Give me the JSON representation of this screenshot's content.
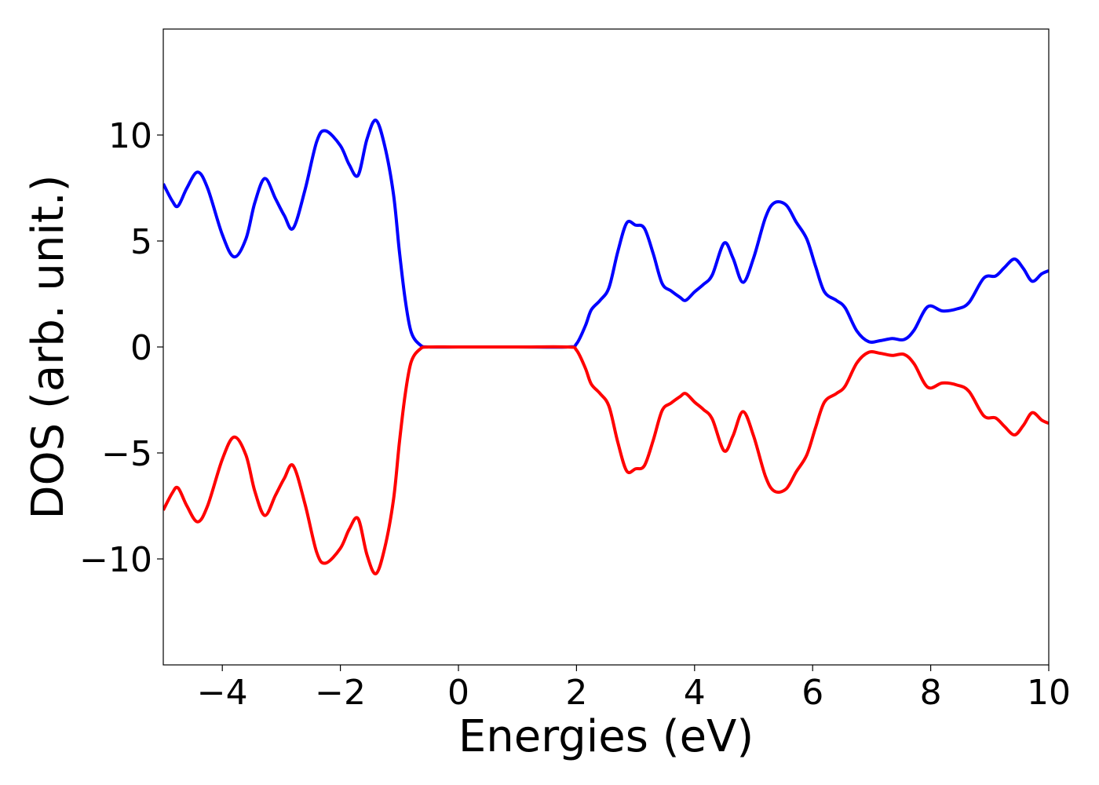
{
  "chart_data": {
    "type": "line",
    "title": "",
    "xlabel": "Energies (eV)",
    "ylabel": "DOS (arb. unit.)",
    "xlim": [
      -5,
      10
    ],
    "ylim": [
      -15,
      15
    ],
    "grid": false,
    "x_ticks": [
      -4,
      -2,
      0,
      2,
      4,
      6,
      8,
      10
    ],
    "x_tick_labels": [
      "−4",
      "−2",
      "0",
      "2",
      "4",
      "6",
      "8",
      "10"
    ],
    "y_ticks": [
      -10,
      -5,
      0,
      5,
      10
    ],
    "y_tick_labels": [
      "−10",
      "−5",
      "0",
      "5",
      "10"
    ],
    "series": [
      {
        "color": "#0000ff",
        "points": [
          [
            -5.0,
            7.7
          ],
          [
            -4.85,
            6.9
          ],
          [
            -4.75,
            6.65
          ],
          [
            -4.6,
            7.5
          ],
          [
            -4.42,
            8.25
          ],
          [
            -4.25,
            7.5
          ],
          [
            -4.0,
            5.3
          ],
          [
            -3.8,
            4.25
          ],
          [
            -3.6,
            5.1
          ],
          [
            -3.45,
            6.8
          ],
          [
            -3.28,
            7.95
          ],
          [
            -3.1,
            7.0
          ],
          [
            -2.95,
            6.2
          ],
          [
            -2.8,
            5.6
          ],
          [
            -2.6,
            7.4
          ],
          [
            -2.4,
            9.7
          ],
          [
            -2.25,
            10.2
          ],
          [
            -2.0,
            9.5
          ],
          [
            -1.85,
            8.6
          ],
          [
            -1.7,
            8.1
          ],
          [
            -1.55,
            9.8
          ],
          [
            -1.4,
            10.7
          ],
          [
            -1.25,
            9.5
          ],
          [
            -1.1,
            7.2
          ],
          [
            -1.0,
            4.5
          ],
          [
            -0.9,
            2.2
          ],
          [
            -0.8,
            0.7
          ],
          [
            -0.65,
            0.1
          ],
          [
            -0.5,
            0.0
          ],
          [
            0.0,
            0.0
          ],
          [
            1.0,
            0.0
          ],
          [
            1.85,
            0.0
          ],
          [
            2.0,
            0.15
          ],
          [
            2.15,
            1.0
          ],
          [
            2.25,
            1.75
          ],
          [
            2.4,
            2.2
          ],
          [
            2.55,
            2.8
          ],
          [
            2.7,
            4.5
          ],
          [
            2.85,
            5.85
          ],
          [
            3.0,
            5.75
          ],
          [
            3.15,
            5.6
          ],
          [
            3.3,
            4.4
          ],
          [
            3.45,
            3.0
          ],
          [
            3.6,
            2.65
          ],
          [
            3.75,
            2.35
          ],
          [
            3.85,
            2.2
          ],
          [
            4.0,
            2.6
          ],
          [
            4.15,
            2.95
          ],
          [
            4.3,
            3.4
          ],
          [
            4.5,
            4.9
          ],
          [
            4.65,
            4.2
          ],
          [
            4.82,
            3.05
          ],
          [
            5.0,
            4.2
          ],
          [
            5.2,
            6.1
          ],
          [
            5.35,
            6.8
          ],
          [
            5.55,
            6.7
          ],
          [
            5.72,
            5.9
          ],
          [
            5.9,
            5.1
          ],
          [
            6.05,
            3.8
          ],
          [
            6.2,
            2.6
          ],
          [
            6.4,
            2.2
          ],
          [
            6.55,
            1.85
          ],
          [
            6.75,
            0.75
          ],
          [
            6.95,
            0.25
          ],
          [
            7.15,
            0.3
          ],
          [
            7.35,
            0.4
          ],
          [
            7.55,
            0.35
          ],
          [
            7.72,
            0.8
          ],
          [
            7.95,
            1.9
          ],
          [
            8.2,
            1.7
          ],
          [
            8.45,
            1.8
          ],
          [
            8.65,
            2.1
          ],
          [
            8.9,
            3.25
          ],
          [
            9.1,
            3.35
          ],
          [
            9.25,
            3.75
          ],
          [
            9.42,
            4.15
          ],
          [
            9.57,
            3.7
          ],
          [
            9.72,
            3.1
          ],
          [
            9.88,
            3.45
          ],
          [
            10.0,
            3.6
          ]
        ]
      },
      {
        "color": "#ff0000",
        "points": [
          [
            -5.0,
            -7.7
          ],
          [
            -4.85,
            -6.9
          ],
          [
            -4.75,
            -6.65
          ],
          [
            -4.6,
            -7.5
          ],
          [
            -4.42,
            -8.25
          ],
          [
            -4.25,
            -7.5
          ],
          [
            -4.0,
            -5.3
          ],
          [
            -3.8,
            -4.25
          ],
          [
            -3.6,
            -5.1
          ],
          [
            -3.45,
            -6.8
          ],
          [
            -3.28,
            -7.95
          ],
          [
            -3.1,
            -7.0
          ],
          [
            -2.95,
            -6.2
          ],
          [
            -2.8,
            -5.6
          ],
          [
            -2.6,
            -7.4
          ],
          [
            -2.4,
            -9.7
          ],
          [
            -2.25,
            -10.2
          ],
          [
            -2.0,
            -9.5
          ],
          [
            -1.85,
            -8.6
          ],
          [
            -1.7,
            -8.1
          ],
          [
            -1.55,
            -9.8
          ],
          [
            -1.4,
            -10.7
          ],
          [
            -1.25,
            -9.5
          ],
          [
            -1.1,
            -7.2
          ],
          [
            -1.0,
            -4.5
          ],
          [
            -0.9,
            -2.2
          ],
          [
            -0.8,
            -0.7
          ],
          [
            -0.65,
            -0.1
          ],
          [
            -0.5,
            0.0
          ],
          [
            0.0,
            0.0
          ],
          [
            1.0,
            0.0
          ],
          [
            1.85,
            0.0
          ],
          [
            2.0,
            -0.15
          ],
          [
            2.15,
            -1.0
          ],
          [
            2.25,
            -1.75
          ],
          [
            2.4,
            -2.2
          ],
          [
            2.55,
            -2.8
          ],
          [
            2.7,
            -4.5
          ],
          [
            2.85,
            -5.85
          ],
          [
            3.0,
            -5.75
          ],
          [
            3.15,
            -5.6
          ],
          [
            3.3,
            -4.4
          ],
          [
            3.45,
            -3.0
          ],
          [
            3.6,
            -2.65
          ],
          [
            3.75,
            -2.35
          ],
          [
            3.85,
            -2.2
          ],
          [
            4.0,
            -2.6
          ],
          [
            4.15,
            -2.95
          ],
          [
            4.3,
            -3.4
          ],
          [
            4.5,
            -4.9
          ],
          [
            4.65,
            -4.2
          ],
          [
            4.82,
            -3.05
          ],
          [
            5.0,
            -4.2
          ],
          [
            5.2,
            -6.1
          ],
          [
            5.35,
            -6.8
          ],
          [
            5.55,
            -6.7
          ],
          [
            5.72,
            -5.9
          ],
          [
            5.9,
            -5.1
          ],
          [
            6.05,
            -3.8
          ],
          [
            6.2,
            -2.6
          ],
          [
            6.4,
            -2.2
          ],
          [
            6.55,
            -1.85
          ],
          [
            6.75,
            -0.75
          ],
          [
            6.95,
            -0.25
          ],
          [
            7.15,
            -0.3
          ],
          [
            7.35,
            -0.4
          ],
          [
            7.55,
            -0.35
          ],
          [
            7.72,
            -0.8
          ],
          [
            7.95,
            -1.9
          ],
          [
            8.2,
            -1.7
          ],
          [
            8.45,
            -1.8
          ],
          [
            8.65,
            -2.1
          ],
          [
            8.9,
            -3.25
          ],
          [
            9.1,
            -3.35
          ],
          [
            9.25,
            -3.75
          ],
          [
            9.42,
            -4.15
          ],
          [
            9.57,
            -3.7
          ],
          [
            9.72,
            -3.1
          ],
          [
            9.88,
            -3.45
          ],
          [
            10.0,
            -3.6
          ]
        ]
      }
    ]
  }
}
